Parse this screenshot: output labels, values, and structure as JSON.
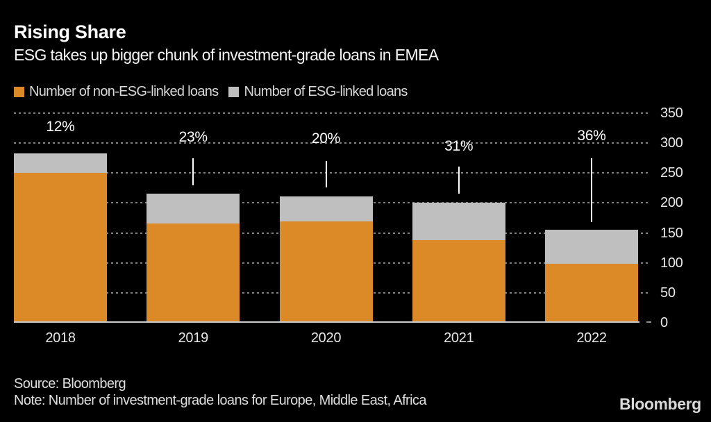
{
  "header": {
    "title": "Rising Share",
    "subtitle": "ESG takes up bigger chunk of investment-grade loans in EMEA"
  },
  "legend": {
    "items": [
      {
        "label": "Number of non-ESG-linked loans",
        "color": "#DC8928"
      },
      {
        "label": "Number of ESG-linked loans",
        "color": "#BFBFBF"
      }
    ]
  },
  "chart_data": {
    "type": "bar",
    "stacked": true,
    "title": "Rising Share",
    "subtitle": "ESG takes up bigger chunk of investment-grade loans in EMEA",
    "categories": [
      "2018",
      "2019",
      "2020",
      "2021",
      "2022"
    ],
    "series": [
      {
        "name": "Number of non-ESG-linked loans",
        "color": "#DC8928",
        "values": [
          250,
          166,
          169,
          138,
          99
        ]
      },
      {
        "name": "Number of ESG-linked loans",
        "color": "#BFBFBF",
        "values": [
          33,
          49,
          42,
          62,
          56
        ]
      }
    ],
    "bar_percent_labels": [
      "12%",
      "23%",
      "20%",
      "31%",
      "36%"
    ],
    "ylim": [
      0,
      350
    ],
    "y_ticks": [
      0,
      50,
      100,
      150,
      200,
      250,
      300,
      350
    ],
    "axis_side": "right",
    "grid": "dotted-horizontal",
    "legend_position": "top-left",
    "background": "#000000"
  },
  "footer": {
    "source": "Source: Bloomberg",
    "note": "Note: Number of investment-grade loans for Europe, Middle East, Africa",
    "brand": "Bloomberg"
  },
  "colors": {
    "background": "#000000",
    "non_esg_bar": "#DC8928",
    "esg_bar": "#BFBFBF",
    "gridline": "#838383",
    "baseline": "#CBCBCB",
    "title_text": "#FFFFFF",
    "axis_text": "#E9E9E9"
  }
}
